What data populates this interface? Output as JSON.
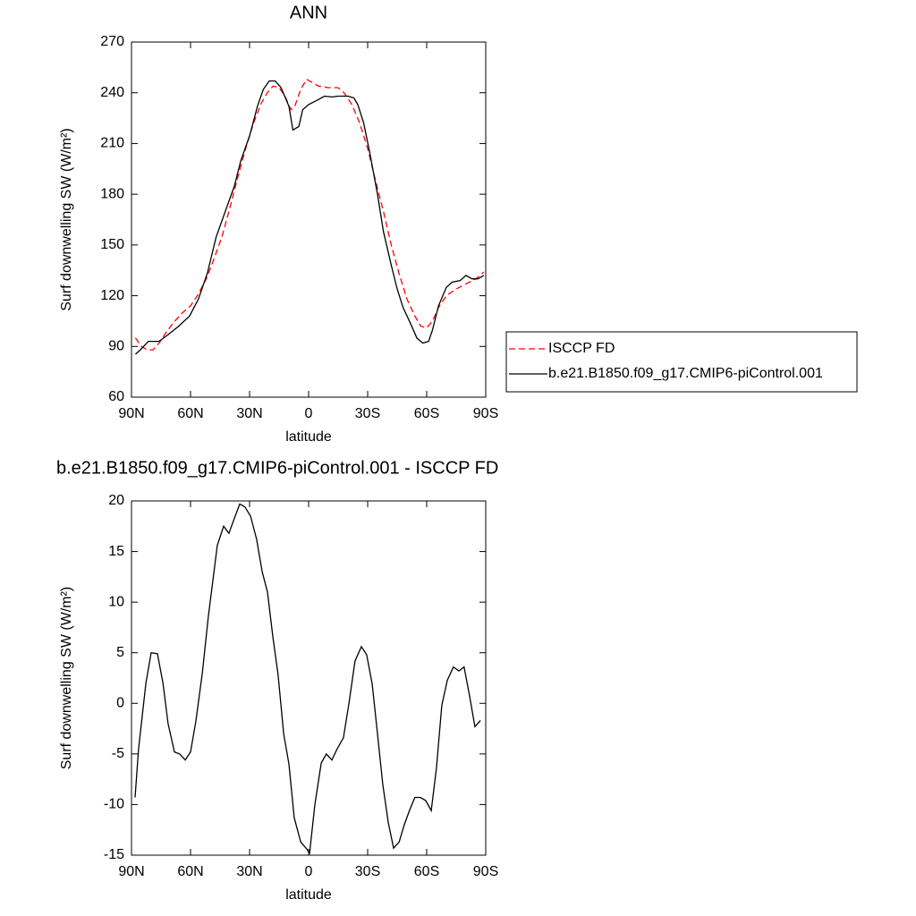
{
  "chart_data": [
    {
      "type": "line",
      "title": "ANN",
      "x_label": "latitude",
      "y_label": "Surf downwelling SW (W/m²)",
      "xlim": [
        90,
        -90
      ],
      "xticks": [
        {
          "value": 90,
          "label": "90N"
        },
        {
          "value": 60,
          "label": "60N"
        },
        {
          "value": 30,
          "label": "30N"
        },
        0,
        {
          "value": -30,
          "label": "30S"
        },
        {
          "value": -60,
          "label": "60S"
        },
        {
          "value": -90,
          "label": "90S"
        }
      ],
      "ylim": [
        60,
        270
      ],
      "yticks": [
        60,
        90,
        120,
        150,
        180,
        210,
        240,
        270
      ],
      "legend": "right",
      "series": [
        {
          "name": "ISCCP FD",
          "color": "#ff0000",
          "dash": true,
          "x": [
            88,
            85,
            82,
            79,
            76,
            72,
            68,
            64,
            60,
            56,
            52,
            48,
            44,
            40,
            36,
            32,
            28,
            24,
            21,
            18,
            15,
            12,
            9,
            7,
            4,
            1,
            -2,
            -5,
            -10,
            -15,
            -18,
            -22,
            -26,
            -30,
            -34,
            -38,
            -42,
            -46,
            -50,
            -54,
            -57,
            -60,
            -63,
            -66,
            -70,
            -75,
            -80,
            -85,
            -89
          ],
          "values": [
            95,
            90,
            88,
            88,
            92,
            99,
            105,
            110,
            114,
            121,
            130,
            142,
            155,
            172,
            190,
            207,
            222,
            234,
            240,
            244,
            243,
            238,
            230,
            232,
            242,
            248,
            246,
            244,
            243,
            243,
            240,
            233,
            222,
            207,
            188,
            170,
            150,
            133,
            118,
            108,
            102,
            101,
            105,
            113,
            120,
            124,
            127,
            130,
            134
          ]
        },
        {
          "name": "b.e21.B1850.f09_g17.CMIP6-piControl.001",
          "color": "#000000",
          "dash": false,
          "x": [
            88,
            85.5,
            81.4,
            76,
            71.4,
            66,
            60.5,
            56,
            51.4,
            47,
            42,
            37.7,
            34.5,
            30,
            26,
            23,
            20,
            17,
            14,
            10,
            8,
            5,
            3,
            0,
            -5,
            -8,
            -12,
            -15,
            -20,
            -23,
            -25,
            -28,
            -31,
            -35,
            -38,
            -42,
            -45,
            -48,
            -52,
            -55,
            -58,
            -61,
            -63,
            -66,
            -70,
            -73,
            -77,
            -80,
            -83,
            -86,
            -89
          ],
          "values": [
            85.4,
            88,
            93,
            93,
            97,
            102,
            108,
            118,
            133.5,
            154.7,
            171,
            185,
            199.7,
            214.5,
            232,
            242,
            247,
            247,
            243,
            232,
            218,
            220,
            230,
            233,
            236,
            238,
            237.5,
            238,
            238,
            237,
            233,
            222,
            205,
            180,
            158,
            138,
            124,
            113,
            103,
            95,
            92,
            93,
            100,
            114,
            125,
            128,
            129,
            132,
            130,
            130,
            132
          ]
        }
      ]
    },
    {
      "type": "line",
      "title": "b.e21.B1850.f09_g17.CMIP6-piControl.001 - ISCCP FD",
      "x_label": "latitude",
      "y_label": "Surf downwelling SW (W/m²)",
      "xlim": [
        90,
        -90
      ],
      "xticks": [
        {
          "value": 90,
          "label": "90N"
        },
        {
          "value": 60,
          "label": "60N"
        },
        {
          "value": 30,
          "label": "30N"
        },
        0,
        {
          "value": -30,
          "label": "30S"
        },
        {
          "value": -60,
          "label": "60S"
        },
        {
          "value": -90,
          "label": "90S"
        }
      ],
      "ylim": [
        -15,
        20
      ],
      "yticks": [
        -15,
        -10,
        -5,
        0,
        5,
        10,
        15,
        20
      ],
      "series": [
        {
          "color": "#000000",
          "dash": false,
          "x": [
            88.2,
            86.4,
            82.7,
            80,
            76.8,
            74,
            71.4,
            68.2,
            65.5,
            62.7,
            60,
            57.3,
            54,
            51,
            46.4,
            43.2,
            40.5,
            37.7,
            35,
            32.3,
            29.5,
            26.4,
            23.6,
            20.9,
            18.2,
            15.5,
            12.7,
            10,
            7.3,
            4,
            0.9,
            -0.5,
            -3.2,
            -6.4,
            -9,
            -11.8,
            -14.5,
            -17.7,
            -20.5,
            -23.6,
            -26.8,
            -29.5,
            -32.3,
            -35,
            -37.7,
            -40.5,
            -43.2,
            -46,
            -48.6,
            -51.4,
            -54,
            -56.8,
            -59.5,
            -62.3,
            -65,
            -67.7,
            -70.5,
            -73.6,
            -76.4,
            -79,
            -81.8,
            -84.5,
            -87.3
          ],
          "values": [
            -9.3,
            -4.5,
            2,
            5,
            4.9,
            2,
            -2,
            -4.8,
            -5,
            -5.6,
            -4.8,
            -1.8,
            3,
            8.5,
            15.6,
            17.5,
            16.8,
            18.3,
            19.7,
            19.4,
            18.5,
            16.2,
            13,
            11,
            6.6,
            2.8,
            -3,
            -6,
            -11.3,
            -13.7,
            -14.4,
            -14.8,
            -10,
            -5.9,
            -5,
            -5.6,
            -4.5,
            -3.4,
            0,
            4.2,
            5.6,
            4.8,
            1.9,
            -3,
            -8,
            -11.8,
            -14.3,
            -13.7,
            -12,
            -10.5,
            -9.3,
            -9.3,
            -9.6,
            -10.6,
            -6.3,
            -0.2,
            2.3,
            3.6,
            3.2,
            3.6,
            0.7,
            -2.3,
            -1.7
          ]
        }
      ]
    }
  ]
}
